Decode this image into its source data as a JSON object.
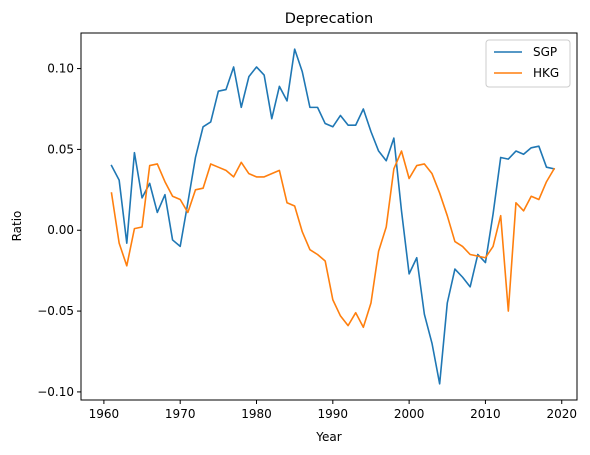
{
  "chart_data": {
    "type": "line",
    "title": "Deprecation",
    "xlabel": "Year",
    "ylabel": "Ratio",
    "xlim": [
      1957,
      2022
    ],
    "ylim": [
      -0.105,
      0.122
    ],
    "xticks": [
      1960,
      1970,
      1980,
      1990,
      2000,
      2010,
      2020
    ],
    "xtick_labels": [
      "1960",
      "1970",
      "1980",
      "1990",
      "2000",
      "2010",
      "2020"
    ],
    "yticks": [
      -0.1,
      -0.05,
      0.0,
      0.05,
      0.1
    ],
    "ytick_labels": [
      "−0.10",
      "−0.05",
      "0.00",
      "0.05",
      "0.10"
    ],
    "grid": false,
    "legend_position": "top-right",
    "x": [
      1961,
      1962,
      1963,
      1964,
      1965,
      1966,
      1967,
      1968,
      1969,
      1970,
      1971,
      1972,
      1973,
      1974,
      1975,
      1976,
      1977,
      1978,
      1979,
      1980,
      1981,
      1982,
      1983,
      1984,
      1985,
      1986,
      1987,
      1988,
      1989,
      1990,
      1991,
      1992,
      1993,
      1994,
      1995,
      1996,
      1997,
      1998,
      1999,
      2000,
      2001,
      2002,
      2003,
      2004,
      2005,
      2006,
      2007,
      2008,
      2009,
      2010,
      2011,
      2012,
      2013,
      2014,
      2015,
      2016,
      2017,
      2018,
      2019
    ],
    "series": [
      {
        "name": "SGP",
        "color": "#1f77b4",
        "values": [
          0.04,
          0.031,
          -0.008,
          0.048,
          0.02,
          0.029,
          0.011,
          0.022,
          -0.006,
          -0.01,
          0.017,
          0.045,
          0.064,
          0.067,
          0.086,
          0.087,
          0.101,
          0.076,
          0.095,
          0.101,
          0.096,
          0.069,
          0.089,
          0.08,
          0.112,
          0.098,
          0.076,
          0.076,
          0.066,
          0.064,
          0.071,
          0.065,
          0.065,
          0.075,
          0.061,
          0.049,
          0.043,
          0.057,
          0.012,
          -0.027,
          -0.017,
          -0.052,
          -0.07,
          -0.095,
          -0.045,
          -0.024,
          -0.029,
          -0.035,
          -0.015,
          -0.02,
          0.01,
          0.045,
          0.044,
          0.049,
          0.047,
          0.051,
          0.052,
          0.039,
          0.038
        ]
      },
      {
        "name": "HKG",
        "color": "#ff7f0e",
        "values": [
          0.023,
          -0.008,
          -0.022,
          0.001,
          0.002,
          0.04,
          0.041,
          0.03,
          0.021,
          0.019,
          0.011,
          0.025,
          0.026,
          0.041,
          0.039,
          0.037,
          0.033,
          0.042,
          0.035,
          0.033,
          0.033,
          0.035,
          0.037,
          0.017,
          0.015,
          -0.001,
          -0.012,
          -0.015,
          -0.019,
          -0.043,
          -0.053,
          -0.059,
          -0.051,
          -0.06,
          -0.045,
          -0.013,
          0.002,
          0.038,
          0.049,
          0.032,
          0.04,
          0.041,
          0.035,
          0.023,
          0.009,
          -0.007,
          -0.01,
          -0.015,
          -0.016,
          -0.017,
          -0.01,
          0.009,
          -0.05,
          0.017,
          0.012,
          0.021,
          0.019,
          0.03,
          0.038
        ]
      }
    ]
  }
}
